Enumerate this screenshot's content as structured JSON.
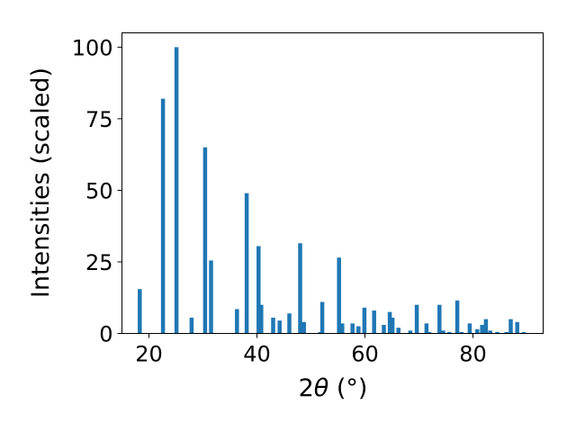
{
  "chart_data": {
    "type": "bar",
    "title": "",
    "xlabel_prefix": "2",
    "xlabel_symbol": "θ",
    "xlabel_unit": " (°)",
    "ylabel": "Intensities (scaled)",
    "xlim": [
      15,
      93
    ],
    "ylim": [
      0,
      105
    ],
    "xticks": [
      20,
      40,
      60,
      80
    ],
    "yticks": [
      0,
      25,
      50,
      75,
      100
    ],
    "grid": false,
    "legend": "none",
    "bar_width_deg": 0.75,
    "color": "#1f77b4",
    "x": [
      18.3,
      22.6,
      25.1,
      27.9,
      30.4,
      31.5,
      36.3,
      38.1,
      40.3,
      40.8,
      43.0,
      44.2,
      46.0,
      48.0,
      48.7,
      51.7,
      52.1,
      55.2,
      55.8,
      57.7,
      58.8,
      59.9,
      61.7,
      63.5,
      64.6,
      65.1,
      66.2,
      68.4,
      69.6,
      71.4,
      71.9,
      73.8,
      74.5,
      75.6,
      77.1,
      77.9,
      79.4,
      80.8,
      81.7,
      82.4,
      83.2,
      84.5,
      86.2,
      87.0,
      88.2,
      89.4
    ],
    "values": [
      15.5,
      82,
      100,
      5.5,
      65,
      25.5,
      8.5,
      49,
      30.5,
      10,
      5.5,
      4.5,
      7,
      31.5,
      4,
      0.5,
      11,
      26.5,
      3.5,
      3.5,
      2.5,
      9,
      8,
      3,
      7.5,
      5.5,
      2,
      1,
      10,
      3.5,
      0.5,
      10,
      1,
      0.5,
      11.5,
      0.5,
      3.5,
      1.5,
      3,
      5,
      1,
      0.5,
      0.5,
      5,
      4,
      0.5
    ]
  }
}
